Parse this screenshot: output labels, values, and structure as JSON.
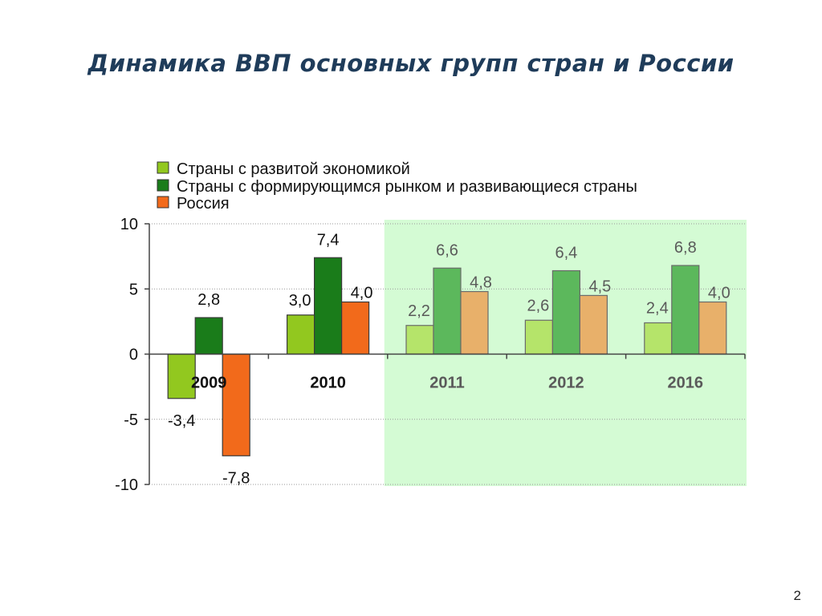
{
  "slide": {
    "title": "Динамика ВВП основных групп стран и России",
    "page_number": "2"
  },
  "chart_data": {
    "type": "bar",
    "categories": [
      "2009",
      "2010",
      "2011",
      "2012",
      "2016"
    ],
    "forecast_categories": [
      "2011",
      "2012",
      "2016"
    ],
    "series": [
      {
        "name": "Страны с развитой экономикой",
        "values": [
          -3.4,
          3.0,
          2.2,
          2.6,
          2.4
        ],
        "labels": [
          "-3,4",
          "3,0",
          "2,2",
          "2,6",
          "2,4"
        ],
        "color": "#92c81f",
        "forecast_color": "#b5e46a"
      },
      {
        "name": "Страны с формирующимся рынком и развивающиеся страны",
        "values": [
          2.8,
          7.4,
          6.6,
          6.4,
          6.8
        ],
        "labels": [
          "2,8",
          "7,4",
          "6,6",
          "6,4",
          "6,8"
        ],
        "color": "#1a7c1a",
        "forecast_color": "#5cb85c"
      },
      {
        "name": "Россия",
        "values": [
          -7.8,
          4.0,
          4.8,
          4.5,
          4.0
        ],
        "labels": [
          "-7,8",
          "4,0",
          "4,8",
          "4,5",
          "4,0"
        ],
        "color": "#f26a1b",
        "forecast_color": "#e8b06a"
      }
    ],
    "yticks": [
      10,
      5,
      0,
      -5,
      -10
    ],
    "ytick_labels": [
      "10",
      "5",
      "0",
      "-5",
      "-10"
    ],
    "ylim": [
      -10,
      10
    ],
    "grid": true,
    "legend": "top",
    "forecast_shading_color": "#d4fbd4"
  }
}
